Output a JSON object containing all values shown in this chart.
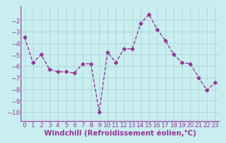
{
  "x": [
    0,
    1,
    2,
    3,
    4,
    5,
    6,
    7,
    8,
    9,
    10,
    11,
    12,
    13,
    14,
    15,
    16,
    17,
    18,
    19,
    20,
    21,
    22,
    23
  ],
  "y": [
    -3.5,
    -5.7,
    -5.0,
    -6.3,
    -6.5,
    -6.5,
    -6.6,
    -5.8,
    -5.8,
    -10.0,
    -4.8,
    -5.7,
    -4.5,
    -4.5,
    -2.3,
    -1.5,
    -2.8,
    -3.8,
    -5.0,
    -5.7,
    -5.8,
    -7.0,
    -8.1,
    -7.4
  ],
  "line_color": "#993399",
  "marker": "D",
  "markersize": 2.5,
  "linewidth": 1.0,
  "xlabel": "Windchill (Refroidissement éolien,°C)",
  "xlim": [
    -0.5,
    23.5
  ],
  "ylim": [
    -10.8,
    -0.8
  ],
  "yticks": [
    -2,
    -3,
    -4,
    -5,
    -6,
    -7,
    -8,
    -9,
    -10
  ],
  "xticks": [
    0,
    1,
    2,
    3,
    4,
    5,
    6,
    7,
    8,
    9,
    10,
    11,
    12,
    13,
    14,
    15,
    16,
    17,
    18,
    19,
    20,
    21,
    22,
    23
  ],
  "bg_color": "#c8eef0",
  "grid_color": "#b0d8da",
  "tick_label_color": "#993399",
  "xlabel_color": "#993399",
  "xlabel_fontsize": 7.5,
  "tick_fontsize": 6.5
}
